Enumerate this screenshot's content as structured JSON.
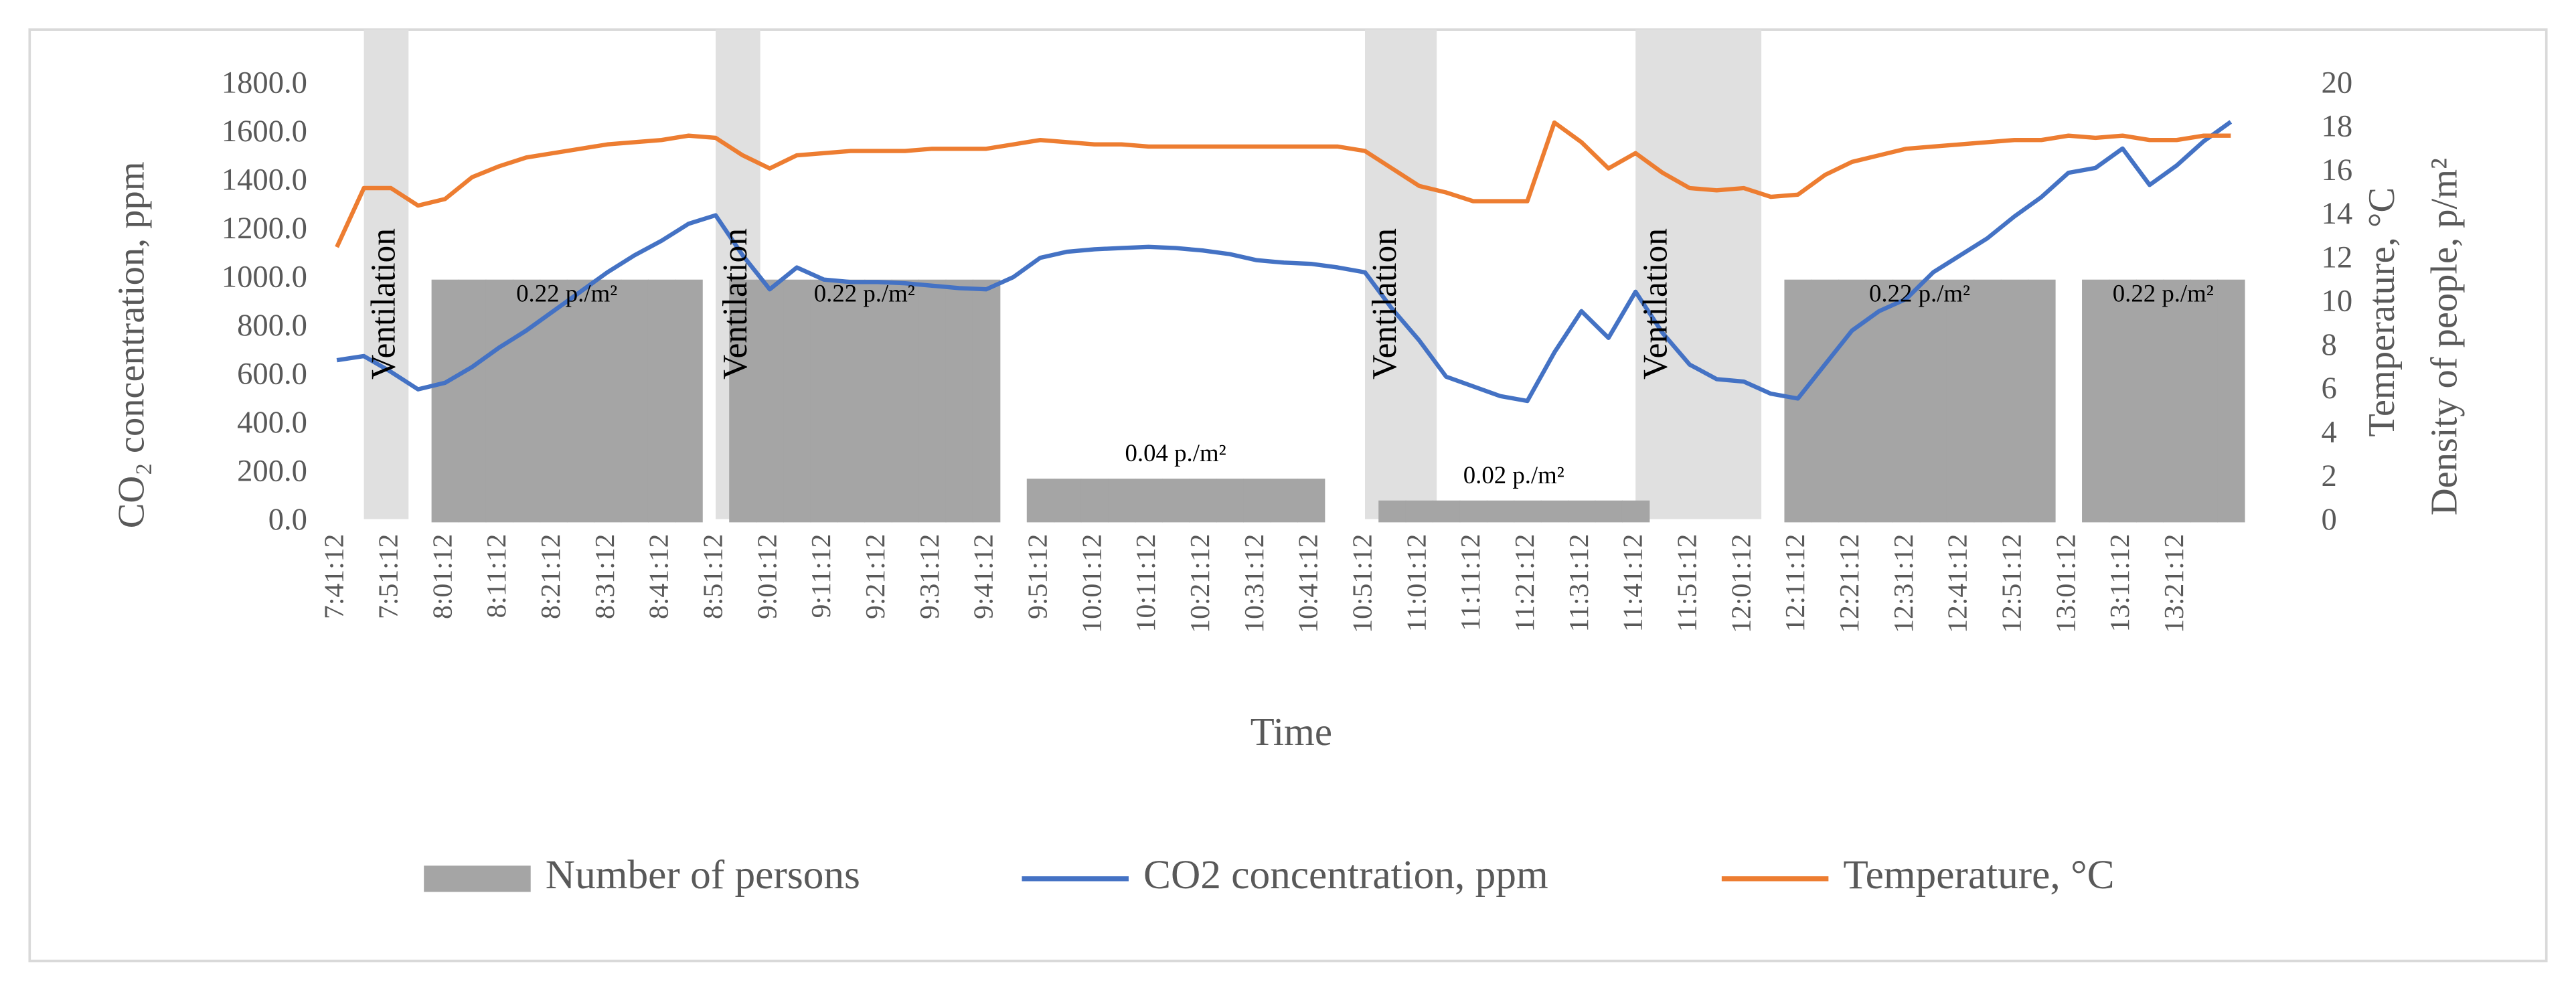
{
  "chart_data": {
    "type": "combo",
    "x_label": "Time",
    "y_label": "CO₂ concentration, ppm",
    "y2_label": "Temperature, °C",
    "y2_label_2": "Density of people, p/m²",
    "categories": [
      "7:41:12",
      null,
      "7:51:12",
      null,
      "8:01:12",
      null,
      "8:11:12",
      null,
      "8:21:12",
      null,
      "8:31:12",
      null,
      "8:41:12",
      null,
      "8:51:12",
      null,
      "9:01:12",
      null,
      "9:11:12",
      null,
      "9:21:12",
      null,
      "9:31:12",
      null,
      "9:41:12",
      null,
      "9:51:12",
      null,
      "10:01:12",
      null,
      "10:11:12",
      null,
      "10:21:12",
      null,
      "10:31:12",
      null,
      "10:41:12",
      null,
      "10:51:12",
      null,
      "11:01:12",
      null,
      "11:11:12",
      null,
      "11:21:12",
      null,
      "11:31:12",
      null,
      "11:41:12",
      null,
      "11:51:12",
      null,
      "12:01:12",
      null,
      "12:11:12",
      null,
      "12:21:12",
      null,
      "12:31:12",
      null,
      "12:41:12",
      null,
      "12:51:12",
      null,
      "13:01:12",
      null,
      "13:11:12",
      null,
      "13:21:12",
      null,
      null
    ],
    "ylim": [
      0,
      1800
    ],
    "yticks": [
      {
        "value": 0,
        "label": "0.0"
      },
      {
        "value": 200,
        "label": "200.0"
      },
      {
        "value": 400,
        "label": "400.0"
      },
      {
        "value": 600,
        "label": "600.0"
      },
      {
        "value": 800,
        "label": "800.0"
      },
      {
        "value": 1000,
        "label": "1000.0"
      },
      {
        "value": 1200,
        "label": "1200.0"
      },
      {
        "value": 1400,
        "label": "1400.0"
      },
      {
        "value": 1600,
        "label": "1600.0"
      },
      {
        "value": 1800,
        "label": "1800.0"
      }
    ],
    "y2lim": [
      0,
      20
    ],
    "y2ticks": [
      0,
      2,
      4,
      6,
      8,
      10,
      12,
      14,
      16,
      18,
      20
    ],
    "legend": "bottom",
    "shaded": {
      "label": "Ventilation",
      "color": "#e0e0e0",
      "spans": [
        [
          1,
          2
        ],
        [
          14,
          15
        ],
        [
          38,
          40
        ],
        [
          48,
          52
        ]
      ]
    },
    "block_labels": [
      "0.22 p./m²",
      "0.22 p./m²",
      "0.04 p./m²",
      "0.02 p./m²",
      "0.22 p./m²",
      "0.22 p./m²"
    ],
    "series": [
      {
        "name": "Number of persons",
        "type": "bar",
        "color": "#a5a5a5",
        "values": [
          null,
          null,
          null,
          null,
          1000,
          1000,
          1000,
          1000,
          1000,
          1000,
          1000,
          1000,
          1000,
          1000,
          null,
          1000,
          1000,
          1000,
          1000,
          1000,
          1000,
          1000,
          1000,
          1000,
          1000,
          null,
          180,
          180,
          180,
          180,
          180,
          180,
          180,
          180,
          180,
          180,
          180,
          null,
          null,
          90,
          90,
          90,
          90,
          90,
          90,
          90,
          90,
          90,
          90,
          null,
          null,
          null,
          null,
          null,
          1000,
          1000,
          1000,
          1000,
          1000,
          1000,
          1000,
          1000,
          1000,
          1000,
          null,
          1000,
          1000,
          1000,
          1000,
          1000,
          1000
        ]
      },
      {
        "name": "CO2 concentration, ppm",
        "type": "line",
        "color": "#4472c4",
        "values": [
          668,
          685,
          620,
          548,
          575,
          640,
          720,
          790,
          870,
          950,
          1030,
          1100,
          1160,
          1230,
          1265,
          1100,
          960,
          1050,
          1000,
          990,
          990,
          985,
          975,
          965,
          960,
          1010,
          1090,
          1115,
          1125,
          1130,
          1135,
          1130,
          1120,
          1105,
          1080,
          1070,
          1065,
          1050,
          1030,
          880,
          750,
          600,
          560,
          520,
          500,
          700,
          870,
          760,
          950,
          780,
          650,
          590,
          580,
          530,
          510,
          650,
          790,
          870,
          920,
          1030,
          1100,
          1170,
          1260,
          1340,
          1440,
          1460,
          1540,
          1390,
          1470,
          1570,
          1650
        ]
      },
      {
        "name": "Temperature, °C",
        "type": "line",
        "axis": "y2",
        "color": "#ed7d31",
        "values": [
          12.6,
          15.3,
          15.3,
          14.5,
          14.8,
          15.8,
          16.3,
          16.7,
          16.9,
          17.1,
          17.3,
          17.4,
          17.5,
          17.7,
          17.6,
          16.8,
          16.2,
          16.8,
          16.9,
          17.0,
          17.0,
          17.0,
          17.1,
          17.1,
          17.1,
          17.3,
          17.5,
          17.4,
          17.3,
          17.3,
          17.2,
          17.2,
          17.2,
          17.2,
          17.2,
          17.2,
          17.2,
          17.2,
          17.0,
          16.2,
          15.4,
          15.1,
          14.7,
          14.7,
          14.7,
          18.3,
          17.4,
          16.2,
          16.9,
          16.0,
          15.3,
          15.2,
          15.3,
          14.9,
          15.0,
          15.9,
          16.5,
          16.8,
          17.1,
          17.2,
          17.3,
          17.4,
          17.5,
          17.5,
          17.7,
          17.6,
          17.7,
          17.5,
          17.5,
          17.7,
          17.7
        ]
      }
    ]
  }
}
